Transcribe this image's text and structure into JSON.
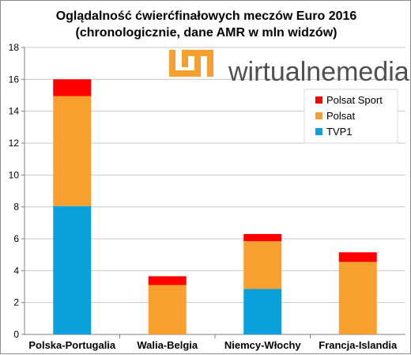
{
  "chart_data": {
    "type": "bar",
    "stacked": true,
    "title_lines": [
      "Oglądalność ćwierćfinałowych meczów Euro 2016",
      "(chronologicznie, dane AMR w mln widzów)"
    ],
    "categories": [
      "Polska-Portugalia",
      "Walia-Belgia",
      "Niemcy-Włochy",
      "Francja-Islandia"
    ],
    "series": [
      {
        "name": "TVP1",
        "color": "#0aa0dc",
        "values": [
          8.05,
          0,
          2.85,
          0
        ]
      },
      {
        "name": "Polsat",
        "color": "#f7a030",
        "values": [
          6.9,
          3.1,
          3.0,
          4.55
        ]
      },
      {
        "name": "Polsat Sport",
        "color": "#ff0000",
        "values": [
          1.05,
          0.55,
          0.45,
          0.6
        ]
      }
    ],
    "ylim": [
      0,
      18
    ],
    "yticks": [
      0,
      2,
      4,
      6,
      8,
      10,
      12,
      14,
      16,
      18
    ],
    "grid": true,
    "legend_position": "right",
    "xlabel": "",
    "ylabel": ""
  },
  "watermark": {
    "text": "wirtualnemedia.pl",
    "logo_color": "#f7a030"
  }
}
